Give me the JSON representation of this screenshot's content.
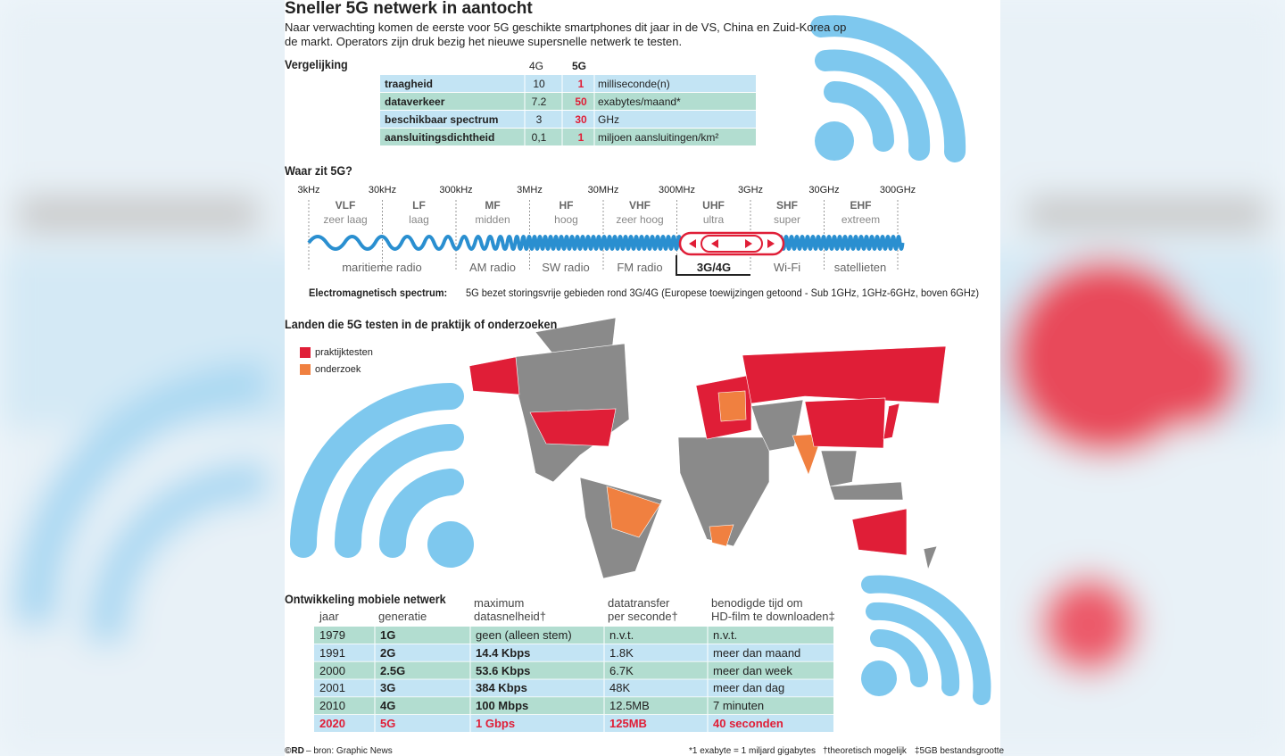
{
  "header": {
    "title": "Sneller 5G netwerk in aantocht",
    "intro": "Naar verwachting komen de eerste voor 5G geschikte smartphones dit jaar in de VS, China en Zuid-Korea op de markt. Operators zijn druk bezig het nieuwe supersnelle netwerk te testen."
  },
  "comparison": {
    "title": "Vergelijking",
    "headers": [
      "4G",
      "5G"
    ],
    "rows": [
      [
        "traagheid",
        "10",
        "1",
        "milliseconde(n)"
      ],
      [
        "dataverkeer",
        "7.2",
        "50",
        "exabytes/maand*"
      ],
      [
        "beschikbaar spectrum",
        "3",
        "30",
        "GHz"
      ],
      [
        "aansluitingsdichtheid",
        "0,1",
        "1",
        "miljoen aansluitingen/km²"
      ]
    ]
  },
  "spectrum": {
    "title": "Waar zit 5G?",
    "frequencies": [
      "3kHz",
      "30kHz",
      "300kHz",
      "3MHz",
      "30MHz",
      "300MHz",
      "3GHz",
      "30GHz",
      "300GHz"
    ],
    "bands": [
      {
        "code": "VLF",
        "name": "zeer laag"
      },
      {
        "code": "LF",
        "name": "laag"
      },
      {
        "code": "MF",
        "name": "midden"
      },
      {
        "code": "HF",
        "name": "hoog"
      },
      {
        "code": "VHF",
        "name": "zeer hoog"
      },
      {
        "code": "UHF",
        "name": "ultra"
      },
      {
        "code": "SHF",
        "name": "super"
      },
      {
        "code": "EHF",
        "name": "extreem"
      }
    ],
    "uses": [
      "maritieme radio",
      "AM radio",
      "SW radio",
      "FM radio",
      "3G/4G",
      "Wi-Fi",
      "satellieten"
    ],
    "caption_bold": "Electromagnetisch spectrum:",
    "caption": "5G bezet storingsvrije gebieden rond 3G/4G (Europese toewijzingen getoond - Sub 1GHz, 1GHz-6GHz, boven 6GHz)"
  },
  "map": {
    "title": "Landen die 5G testen in de praktijk of onderzoeken",
    "legend": [
      "praktijktesten",
      "onderzoek"
    ]
  },
  "development": {
    "title": "Ontwikkeling mobiele netwerk",
    "headers": [
      [
        "jaar"
      ],
      [
        "generatie"
      ],
      [
        "maximum",
        "datasnelheid†"
      ],
      [
        "datatransfer",
        "per seconde†"
      ],
      [
        "benodigde tijd om",
        "HD-film te downloaden‡"
      ]
    ],
    "rows": [
      [
        "1979",
        "1G",
        "geen (alleen stem)",
        "n.v.t.",
        "n.v.t."
      ],
      [
        "1991",
        "2G",
        "14.4 Kbps",
        "1.8K",
        "meer dan maand"
      ],
      [
        "2000",
        "2.5G",
        "53.6 Kbps",
        "6.7K",
        "meer dan week"
      ],
      [
        "2001",
        "3G",
        "384 Kbps",
        "48K",
        "meer dan dag"
      ],
      [
        "2010",
        "4G",
        "100 Mbps",
        "12.5MB",
        "7 minuten"
      ],
      [
        "2020",
        "5G",
        "1 Gbps",
        "125MB",
        "40 seconden"
      ]
    ]
  },
  "footer": {
    "source_bold": "©RD",
    "source": "– bron: Graphic News",
    "notes": [
      "*1 exabyte = 1 miljard gigabytes",
      "†theoretisch mogelijk",
      "‡5GB bestandsgrootte"
    ]
  }
}
